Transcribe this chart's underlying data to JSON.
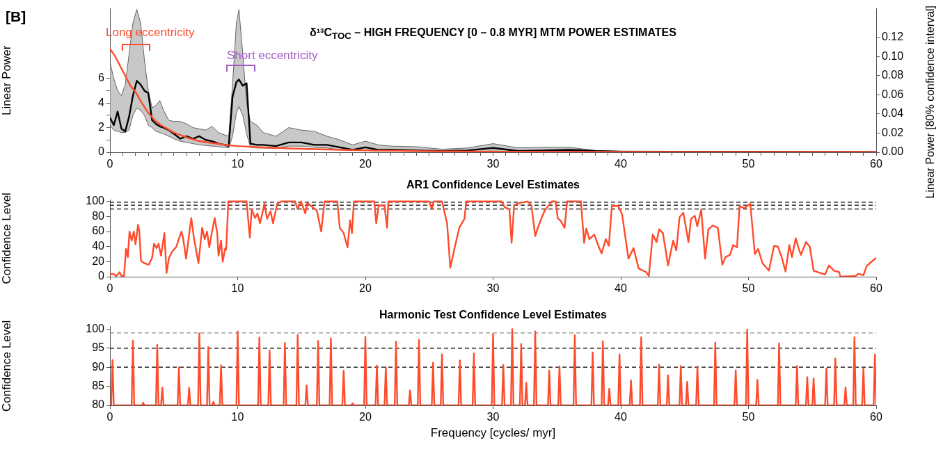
{
  "chart_data": [
    {
      "type": "line",
      "title": "δ¹³C$_{TOC}$ – HIGH FREQUENCY [0 – 0.8 MYR] MTM POWER ESTIMATES",
      "ylabel": "Linear Power",
      "y2label": "Linear Power [80% confidence interval]",
      "annotations": [
        "[B]",
        "Long eccentricity",
        "Short eccentricity"
      ],
      "xlim": [
        0,
        60
      ],
      "xticks": [
        0,
        {
          "value": 1,
          "label": null
        },
        {
          "value": 2,
          "label": null
        },
        {
          "value": 3,
          "label": null
        },
        {
          "value": 4,
          "label": null
        },
        {
          "value": 5,
          "label": null
        },
        {
          "value": 6,
          "label": null
        },
        {
          "value": 7,
          "label": null
        },
        {
          "value": 8,
          "label": null
        },
        {
          "value": 9,
          "label": null
        },
        10,
        {
          "value": 11,
          "label": null
        },
        {
          "value": 12,
          "label": null
        },
        {
          "value": 13,
          "label": null
        },
        {
          "value": 14,
          "label": null
        },
        {
          "value": 15,
          "label": null
        },
        {
          "value": 16,
          "label": null
        },
        {
          "value": 17,
          "label": null
        },
        {
          "value": 18,
          "label": null
        },
        {
          "value": 19,
          "label": null
        },
        20,
        {
          "value": 21,
          "label": null
        },
        {
          "value": 22,
          "label": null
        },
        {
          "value": 23,
          "label": null
        },
        {
          "value": 24,
          "label": null
        },
        {
          "value": 25,
          "label": null
        },
        {
          "value": 26,
          "label": null
        },
        {
          "value": 27,
          "label": null
        },
        {
          "value": 28,
          "label": null
        },
        {
          "value": 29,
          "label": null
        },
        30,
        {
          "value": 31,
          "label": null
        },
        {
          "value": 32,
          "label": null
        },
        {
          "value": 33,
          "label": null
        },
        {
          "value": 34,
          "label": null
        },
        {
          "value": 35,
          "label": null
        },
        {
          "value": 36,
          "label": null
        },
        {
          "value": 37,
          "label": null
        },
        {
          "value": 38,
          "label": null
        },
        {
          "value": 39,
          "label": null
        },
        40,
        {
          "value": 41,
          "label": null
        },
        {
          "value": 42,
          "label": null
        },
        {
          "value": 43,
          "label": null
        },
        {
          "value": 44,
          "label": null
        },
        {
          "value": 45,
          "label": null
        },
        {
          "value": 46,
          "label": null
        },
        {
          "value": 47,
          "label": null
        },
        {
          "value": 48,
          "label": null
        },
        {
          "value": 49,
          "label": null
        },
        50,
        {
          "value": 51,
          "label": null
        },
        {
          "value": 52,
          "label": null
        },
        {
          "value": 53,
          "label": null
        },
        {
          "value": 54,
          "label": null
        },
        {
          "value": 55,
          "label": null
        },
        {
          "value": 56,
          "label": null
        },
        {
          "value": 57,
          "label": null
        },
        {
          "value": 58,
          "label": null
        },
        {
          "value": 59,
          "label": null
        },
        60
      ],
      "ylim": [
        0,
        11.65
      ],
      "yticks": [
        0,
        {
          "value": 1,
          "label": null
        },
        2,
        {
          "value": 3,
          "label": null
        },
        4,
        {
          "value": 5,
          "label": null
        },
        6
      ],
      "y2lim": [
        0,
        0.15
      ],
      "y2ticks": [
        {
          "value": 0,
          "label": "0.00"
        },
        {
          "value": 0.02,
          "label": "0.02"
        },
        {
          "value": 0.04,
          "label": "0.04"
        },
        {
          "value": 0.06,
          "label": "0.06"
        },
        {
          "value": 0.08,
          "label": "0.08"
        },
        {
          "value": 0.1,
          "label": "0.10"
        },
        {
          "value": 0.12,
          "label": "0.12"
        }
      ],
      "series": [
        {
          "color": "#000000",
          "x": [
            0,
            0.3,
            0.6,
            0.9,
            1.2,
            1.5,
            1.8,
            2.1,
            2.4,
            2.7,
            3.0,
            3.3,
            3.6,
            3.9,
            4.2,
            4.6,
            5,
            5.5,
            6,
            6.5,
            7,
            7.5,
            8,
            8.5,
            9,
            9.3,
            9.6,
            9.9,
            10.1,
            10.4,
            10.7,
            11,
            11.5,
            12,
            13,
            14,
            15,
            16,
            17,
            18,
            19,
            20,
            21,
            22,
            24,
            26,
            28,
            30,
            32,
            34,
            36,
            38,
            40,
            45,
            50,
            55,
            60
          ],
          "values": [
            2.8,
            2.2,
            3.3,
            1.9,
            1.7,
            2.9,
            4.6,
            5.8,
            5.5,
            5.0,
            4.8,
            2.6,
            2.3,
            2.1,
            2.0,
            1.8,
            1.5,
            1.1,
            1.3,
            1.1,
            1.3,
            1.0,
            0.9,
            0.7,
            0.6,
            0.5,
            4.5,
            5.7,
            5.9,
            5.4,
            5.6,
            0.7,
            0.6,
            0.6,
            0.5,
            0.8,
            0.8,
            0.6,
            0.6,
            0.4,
            0.2,
            0.4,
            0.2,
            0.2,
            0.15,
            0.1,
            0.15,
            0.35,
            0.1,
            0.15,
            0.2,
            0.1,
            0.05,
            0.03,
            0.03,
            0.02,
            0.02
          ],
          "upper": [
            7.3,
            6.0,
            5.0,
            4.6,
            5.5,
            8.0,
            10.5,
            11.6,
            10.5,
            7.5,
            5.0,
            3.6,
            3.8,
            4.2,
            3.4,
            2.6,
            2.5,
            2.5,
            2.3,
            2.0,
            1.9,
            1.8,
            2.1,
            1.6,
            1.4,
            1.3,
            5.5,
            10.5,
            11.6,
            8.0,
            4.0,
            2.5,
            2.2,
            1.6,
            1.3,
            2.0,
            1.8,
            1.7,
            1.3,
            1.0,
            0.6,
            0.9,
            0.6,
            0.5,
            0.45,
            0.25,
            0.35,
            0.7,
            0.35,
            0.4,
            0.4,
            0.15,
            0.1,
            0.08,
            0.07,
            0.06,
            0.05
          ],
          "lower": [
            2.2,
            1.8,
            1.7,
            1.6,
            1.6,
            1.8,
            3.0,
            3.6,
            3.4,
            3.0,
            2.2,
            2.0,
            1.7,
            1.6,
            1.5,
            1.3,
            1.1,
            0.9,
            0.8,
            0.7,
            0.6,
            0.55,
            0.5,
            0.45,
            0.4,
            0.35,
            1.3,
            3.2,
            3.7,
            3.0,
            1.5,
            0.4,
            0.35,
            0.35,
            0.3,
            0.5,
            0.5,
            0.4,
            0.35,
            0.2,
            0.15,
            0.15,
            0.1,
            0.1,
            0.05,
            0.05,
            0.05,
            0.1,
            0.05,
            0.05,
            0.05,
            0.03,
            0.02,
            0.02,
            0.01,
            0.01,
            0.01
          ]
        },
        {
          "color": "#ff4b2b",
          "x": [
            0,
            0.4,
            0.8,
            1.2,
            1.6,
            2,
            2.5,
            3,
            3.5,
            4,
            5,
            6,
            7,
            8,
            9,
            10,
            12,
            15,
            20,
            25,
            30,
            40,
            50,
            60
          ],
          "values": [
            8.4,
            7.8,
            7.0,
            6.2,
            5.4,
            4.9,
            4.0,
            3.2,
            2.6,
            2.2,
            1.6,
            1.2,
            0.9,
            0.75,
            0.6,
            0.5,
            0.38,
            0.28,
            0.15,
            0.09,
            0.05,
            0.03,
            0.02,
            0.02
          ]
        }
      ]
    },
    {
      "type": "line",
      "title": "AR1 Confidence Level Estimates",
      "ylabel": "Confidence Level",
      "xlim": [
        0,
        60
      ],
      "xticks": [
        0,
        10,
        20,
        30,
        40,
        50,
        60
      ],
      "ylim": [
        0,
        102
      ],
      "yticks": [
        0,
        20,
        40,
        60,
        80,
        100
      ],
      "ref_lines": [
        {
          "axis": "y",
          "value": 99,
          "color": "#000000",
          "line_style": "dashed"
        },
        {
          "axis": "y",
          "value": 95,
          "color": "#000000",
          "line_style": "dashed"
        },
        {
          "axis": "y",
          "value": 90,
          "color": "#000000",
          "line_style": "dashed"
        }
      ],
      "series": [
        {
          "color": "#ff4b2b",
          "x": [
            0,
            0.25,
            0.5,
            0.75,
            0.9,
            1.1,
            1.26,
            1.4,
            1.53,
            1.7,
            1.87,
            2.0,
            2.2,
            2.3,
            2.43,
            2.67,
            3.04,
            3.3,
            3.45,
            3.65,
            3.8,
            4.0,
            4.26,
            4.43,
            4.62,
            4.86,
            5.2,
            5.35,
            5.6,
            5.72,
            5.96,
            6.25,
            6.37,
            6.57,
            6.93,
            7.22,
            7.42,
            7.6,
            7.78,
            7.95,
            8.2,
            8.4,
            8.5,
            8.7,
            8.83,
            9.03,
            9.1,
            9.27,
            10.7,
            10.95,
            11.1,
            11.36,
            11.55,
            11.75,
            12.1,
            12.3,
            12.57,
            12.77,
            13.1,
            13.4,
            14.5,
            14.7,
            14.96,
            15.3,
            15.45,
            16.2,
            16.54,
            16.8,
            17.8,
            18.0,
            18.3,
            18.6,
            18.8,
            18.95,
            19.1,
            20.7,
            20.85,
            21.05,
            21.5,
            21.7,
            21.8,
            25.0,
            25.2,
            25.35,
            26.0,
            26.4,
            26.65,
            27.0,
            27.35,
            27.76,
            27.9,
            30.67,
            30.92,
            31.28,
            31.45,
            31.65,
            32.1,
            32.7,
            33.0,
            33.3,
            33.55,
            33.8,
            34.05,
            34.6,
            34.9,
            35.06,
            35.3,
            35.6,
            35.8,
            36.88,
            37.13,
            37.3,
            37.54,
            37.93,
            38.2,
            38.5,
            38.83,
            39.07,
            39.3,
            39.8,
            40.1,
            40.6,
            41.0,
            41.4,
            41.99,
            42.2,
            42.5,
            42.8,
            43.0,
            43.3,
            43.7,
            44.1,
            44.35,
            44.6,
            44.9,
            45.3,
            45.5,
            45.8,
            45.99,
            46.3,
            46.6,
            46.86,
            47.2,
            47.6,
            47.95,
            48.2,
            48.55,
            48.8,
            49.1,
            49.3,
            49.66,
            50.14,
            50.5,
            50.75,
            51.1,
            51.6,
            52.0,
            52.3,
            52.6,
            52.9,
            53.2,
            53.4,
            53.7,
            53.9,
            54.1,
            54.5,
            54.8,
            55.1,
            55.6,
            56.0,
            56.3,
            56.7,
            57.1,
            57.2,
            58.4,
            58.6,
            59.0,
            59.25,
            59.5,
            60
          ],
          "values": [
            3,
            4,
            1,
            6,
            1,
            1,
            37,
            26,
            60,
            48,
            60,
            43,
            69,
            60,
            21,
            18,
            16,
            25,
            44,
            38,
            44,
            28,
            58,
            5,
            25,
            33,
            40,
            48,
            60,
            52,
            24,
            63,
            78,
            52,
            18,
            65,
            50,
            60,
            39,
            56,
            78,
            58,
            28,
            48,
            20,
            38,
            36,
            100,
            100,
            52,
            90,
            78,
            84,
            71,
            97,
            77,
            87,
            71,
            97,
            100,
            100,
            90,
            100,
            84,
            98,
            88,
            60,
            100,
            100,
            65,
            58,
            39,
            75,
            58,
            100,
            100,
            71,
            95,
            94,
            65,
            100,
            100,
            90,
            100,
            100,
            71,
            12,
            39,
            65,
            77,
            100,
            100,
            92,
            90,
            45,
            95,
            98,
            100,
            95,
            54,
            67,
            78,
            88,
            100,
            100,
            78,
            74,
            65,
            100,
            100,
            45,
            64,
            50,
            56,
            43,
            31,
            50,
            41,
            94,
            94,
            83,
            24,
            38,
            11,
            6,
            1,
            56,
            46,
            63,
            58,
            15,
            48,
            35,
            79,
            85,
            46,
            77,
            81,
            67,
            89,
            24,
            63,
            68,
            65,
            16,
            26,
            29,
            42,
            39,
            94,
            91,
            97,
            30,
            37,
            18,
            8,
            41,
            40,
            26,
            7,
            42,
            26,
            51,
            39,
            29,
            46,
            40,
            8,
            5,
            3,
            15,
            8,
            6,
            0,
            1,
            4,
            2,
            14,
            18,
            25
          ]
        }
      ]
    },
    {
      "type": "line",
      "title": "Harmonic Test Confidence Level Estimates",
      "ylabel": "Confidence Level",
      "xlabel": "Frequency [cycles/ myr]",
      "xlim": [
        0,
        60
      ],
      "xticks": [
        0,
        10,
        20,
        30,
        40,
        50,
        60
      ],
      "ylim": [
        80,
        100.7
      ],
      "yticks": [
        80,
        85,
        90,
        95,
        100
      ],
      "ref_lines": [
        {
          "axis": "y",
          "value": 99,
          "color": "#8c8c8c",
          "line_style": "dashed"
        },
        {
          "axis": "y",
          "value": 95,
          "color": "#000000",
          "line_style": "dashed"
        },
        {
          "axis": "y",
          "value": 90,
          "color": "#000000",
          "line_style": "dashed"
        }
      ],
      "series": [
        {
          "color": "#ff4b2b",
          "x": [
            0.1,
            0.2,
            0.3,
            1.7,
            1.8,
            1.9,
            2.5,
            2.6,
            2.7,
            3.6,
            3.7,
            3.8,
            4.0,
            4.1,
            4.2,
            5.3,
            5.4,
            5.5,
            6.1,
            6.2,
            6.3,
            6.9,
            7.0,
            7.1,
            7.6,
            7.7,
            7.8,
            8.0,
            8.1,
            8.2,
            8.6,
            8.7,
            8.8,
            9.9,
            10.0,
            10.1,
            11.6,
            11.7,
            11.8,
            12.4,
            12.5,
            12.6,
            13.6,
            13.7,
            13.8,
            14.6,
            14.7,
            14.8,
            15.3,
            15.4,
            15.5,
            16.2,
            16.3,
            16.4,
            17.2,
            17.3,
            17.4,
            18.2,
            18.3,
            18.4,
            18.9,
            19.0,
            19.1,
            19.9,
            20.0,
            20.1,
            20.8,
            20.9,
            21.0,
            21.5,
            21.6,
            21.7,
            22.3,
            22.4,
            22.5,
            23.4,
            23.5,
            23.6,
            24.1,
            24.2,
            24.3,
            25.2,
            25.3,
            25.4,
            25.9,
            26.0,
            26.1,
            27.3,
            27.4,
            27.5,
            28.4,
            28.5,
            28.6,
            29.9,
            30.0,
            30.1,
            30.7,
            30.8,
            30.9,
            31.4,
            31.5,
            31.6,
            32.1,
            32.2,
            32.3,
            32.5,
            32.6,
            32.7,
            33.2,
            33.3,
            33.4,
            34.3,
            34.4,
            34.5,
            35.1,
            35.2,
            35.3,
            36.3,
            36.4,
            36.5,
            37.7,
            37.8,
            37.9,
            38.5,
            38.6,
            38.7,
            39.0,
            39.1,
            39.2,
            39.8,
            39.9,
            40.0,
            40.7,
            40.8,
            40.9,
            41.5,
            41.6,
            41.7,
            42.9,
            43.0,
            43.1,
            43.6,
            43.7,
            43.8,
            44.6,
            44.7,
            44.8,
            45.1,
            45.2,
            45.3,
            45.9,
            46.0,
            46.1,
            47.3,
            47.4,
            47.5,
            48.9,
            49.0,
            49.1,
            49.8,
            49.9,
            50.0,
            50.6,
            50.7,
            50.8,
            52.3,
            52.4,
            52.5,
            53.7,
            53.8,
            53.9,
            54.5,
            54.6,
            54.7,
            55.0,
            55.1,
            55.2,
            56.0,
            56.1,
            56.2,
            56.7,
            56.8,
            56.9,
            57.5,
            57.6,
            57.7,
            58.2,
            58.3,
            58.4,
            58.9,
            59.0,
            59.1,
            59.8,
            59.9,
            60.0
          ],
          "values": [
            80,
            91.9,
            80,
            80,
            97.0,
            80,
            80,
            80.7,
            80,
            80,
            95.9,
            80,
            80,
            84.6,
            80,
            80,
            89.9,
            80,
            80,
            84.6,
            80,
            80,
            98.9,
            80,
            80,
            95.3,
            80,
            80,
            80.9,
            80,
            80,
            90.5,
            80,
            80,
            99.4,
            80,
            80,
            97.8,
            80,
            80,
            94.4,
            80,
            80,
            96.4,
            80,
            80,
            98.5,
            80,
            80,
            85.2,
            80,
            80,
            96.9,
            80,
            80,
            97.6,
            80,
            80,
            89.1,
            80,
            80,
            80.5,
            80,
            80,
            98.0,
            80,
            80,
            90.4,
            80,
            80,
            90.0,
            80,
            80,
            96.7,
            80,
            80,
            83.9,
            80,
            80,
            97.2,
            80,
            80,
            91.2,
            80,
            80,
            93.4,
            80,
            80,
            91.8,
            80,
            80,
            93.6,
            80,
            80,
            98.8,
            80,
            80,
            90.6,
            80,
            80,
            100.0,
            80,
            80,
            96.1,
            80,
            80,
            85.9,
            80,
            80,
            99.4,
            80,
            80,
            89.2,
            80,
            80,
            90.2,
            80,
            80,
            98.4,
            80,
            80,
            93.9,
            80,
            80,
            96.8,
            80,
            80,
            84.4,
            80,
            80,
            93.4,
            80,
            80,
            86.6,
            80,
            80,
            97.9,
            80,
            80,
            90.7,
            80,
            80,
            87.9,
            80,
            80,
            90.3,
            80,
            80,
            86.2,
            80,
            80,
            90.2,
            80,
            80,
            96.5,
            80,
            80,
            89.2,
            80,
            80,
            99.9,
            80,
            80,
            86.7,
            80,
            80,
            96.3,
            80,
            80,
            90.3,
            80,
            80,
            87.4,
            80,
            80,
            87.1,
            80,
            80,
            89.7,
            80,
            80,
            92.3,
            80,
            80,
            84.7,
            80,
            80,
            97.9,
            80,
            80,
            89.7,
            80,
            80,
            93.4,
            80
          ]
        }
      ]
    }
  ]
}
